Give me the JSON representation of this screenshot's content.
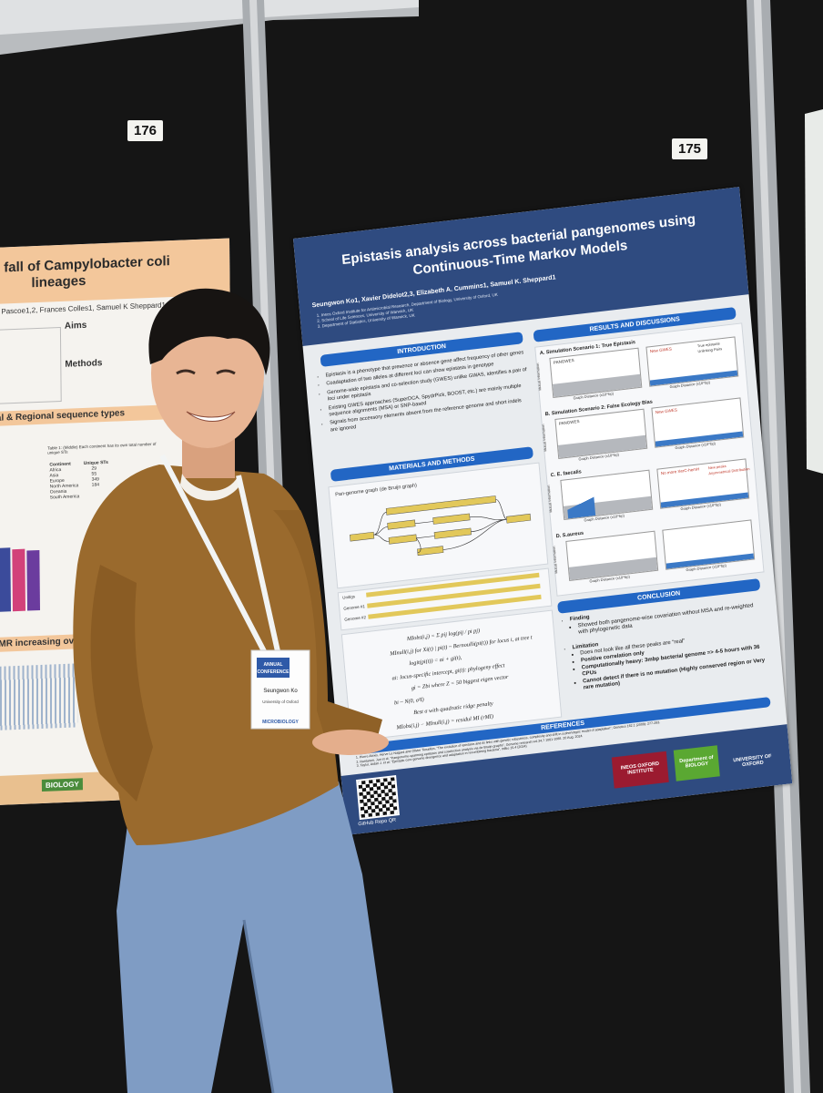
{
  "booth_numbers": [
    "176",
    "175"
  ],
  "left_poster": {
    "title_lines": [
      "fall of Campylobacter coli",
      "lineages"
    ],
    "authors": "n Pascoe1,2, Frances Colles1, Samuel K Sheppard1,2",
    "aims_heading": "Aims",
    "methods_heading": "Methods",
    "section_1": "al & Regional sequence types",
    "table_caption": "Table 1: (Middle) Each continent has its own total number of unique STs",
    "table_header": [
      "Continent",
      "Unique STs"
    ],
    "table_rows": [
      [
        "Africa",
        "29"
      ],
      [
        "Asia",
        "55"
      ],
      [
        "Europe",
        "349"
      ],
      [
        "North America",
        "184"
      ],
      [
        "Oceania",
        ""
      ],
      [
        "South America",
        ""
      ]
    ],
    "section_2": "MR increasing over t",
    "footer_logo": "BIOLOGY"
  },
  "poster": {
    "title_lines": [
      "Epistasis analysis across bacterial pangenomes using",
      "Continuous-Time Markov Models"
    ],
    "authors": "Seungwon Ko1, Xavier Didelot2,3, Elizabeth A. Cummins1, Samuel K. Sheppard1",
    "affiliations": [
      "1. Ineos Oxford Institute for Antimicrobial Research, Department of Biology, University of Oxford, UK",
      "2. School of Life Sciences, University of Warwick, UK",
      "3. Department of Statistics, University of Warwick, UK"
    ],
    "introduction": {
      "heading": "INTRODUCTION",
      "bullets": [
        "Epistasis is a phenotype that presence or absence gene affect frequency of other genes",
        "Coadaptation of two alleles at different loci can show epistasis in genotype",
        "Genome-wide epistasis and co-selection study (GWES) unlike GWAS, identifies a pair of loci under epistasis",
        "Existing GWES approaches (SuperDCA, SpydrPick, BOOST, etc.) are mainly multiple sequence alignments (MSA) or SNP-based",
        "Signals from accessory elements absent from the reference genome and short indels are ignored"
      ]
    },
    "methods": {
      "heading": "MATERIALS AND METHODS",
      "graph_title": "Pan-genome graph (de Bruijn graph)",
      "genome_labels": [
        "Unitigs",
        "Genome #1",
        "Genome #2"
      ],
      "equations": [
        "MIobs(i,j) = Σ pij log(pij / pi pj)",
        "MInull(i,j) for Xi(t) | pi(t) ~ Bernoulli(pi(t)) for locus i, at tree t",
        "logit(pi(t)) = αi + gi(t),",
        "αi: locus-specific intercept, gi(t): phylogeny effect",
        "gi = Zbi where Z = 50 biggest eigen vector",
        "bi ~ N(0, σ²I)",
        "Best σ with quadratic ridge penalty",
        "MIobs(i,j) − MInull(i,j) = residul MI (rMI)"
      ]
    },
    "results": {
      "heading": "RESULTS AND DISCUSSIONS",
      "panels": [
        {
          "title": "A. Simulation Scenario 1: True Epistasis",
          "left": "PANGWES",
          "right": "New GWES",
          "legend": [
            "True epistasis",
            "Unlinking Pairs"
          ]
        },
        {
          "title": "B. Simulation Scenario 2: False Ecology Bias",
          "left": "PANGWES",
          "right": "New GWES",
          "legend": []
        },
        {
          "title": "C. E. faecalis",
          "left": "",
          "right": "No more XerC-hemH",
          "legend": [
            "New peaks",
            "Asymmetrical Distribution"
          ]
        },
        {
          "title": "D. S.aureus",
          "left": "",
          "right": "",
          "legend": []
        }
      ],
      "x_axis_label": "Graph Distance (x10^bp)",
      "y_axis_label": "Mutual Information"
    },
    "conclusion": {
      "heading": "CONCLUSION",
      "finding_heading": "Finding",
      "finding": "Showed both pangenome-wise covariation without MSA and re-weighted with phylogenetic data",
      "limitation_heading": "Limitation",
      "limitations": [
        "Does not look like all these peaks are “real”",
        "Positive correlation only",
        "Computationally heavy: 3mbp bacterial genome => 4-5 hours with 36 CPUs",
        "Cannot detect if there is no mutation (Highly conserved region or Very rare mutation)"
      ]
    },
    "references": {
      "heading": "REFERENCES",
      "items": [
        "1. Pierre Alexis, Herve Le Nagard and Olivier Tenaillon, “The evolution of epistasis and its links with genetic robustness, complexity and drift in a phenotypic model of adaptation”, Genetics 182.1 (2009): 277-293.",
        "2. Runtanen, Juri et al. “Pangenome-spanning epistasis and coselection analysis via de Bruijn graphs”, Genome research vol.34,7 1081-1088. 20 Aug. 2024",
        "3. Taylor, Aidan J. et al. “Epistatic core genome divergence and adaptation in recombining bacteria”, mBio 15.4 (2024)"
      ]
    },
    "qr_caption": "GitHub Repo QR",
    "logos": [
      "INEOS OXFORD INSTITUTE",
      "Department of BIOLOGY",
      "UNIVERSITY OF OXFORD"
    ]
  },
  "badge": {
    "header_lines": [
      "ANNUAL",
      "CONFERENCE"
    ],
    "name": "Seungwon Ko",
    "affiliation": "University of Oxford",
    "sponsor": "MICROBIOLOGY"
  }
}
